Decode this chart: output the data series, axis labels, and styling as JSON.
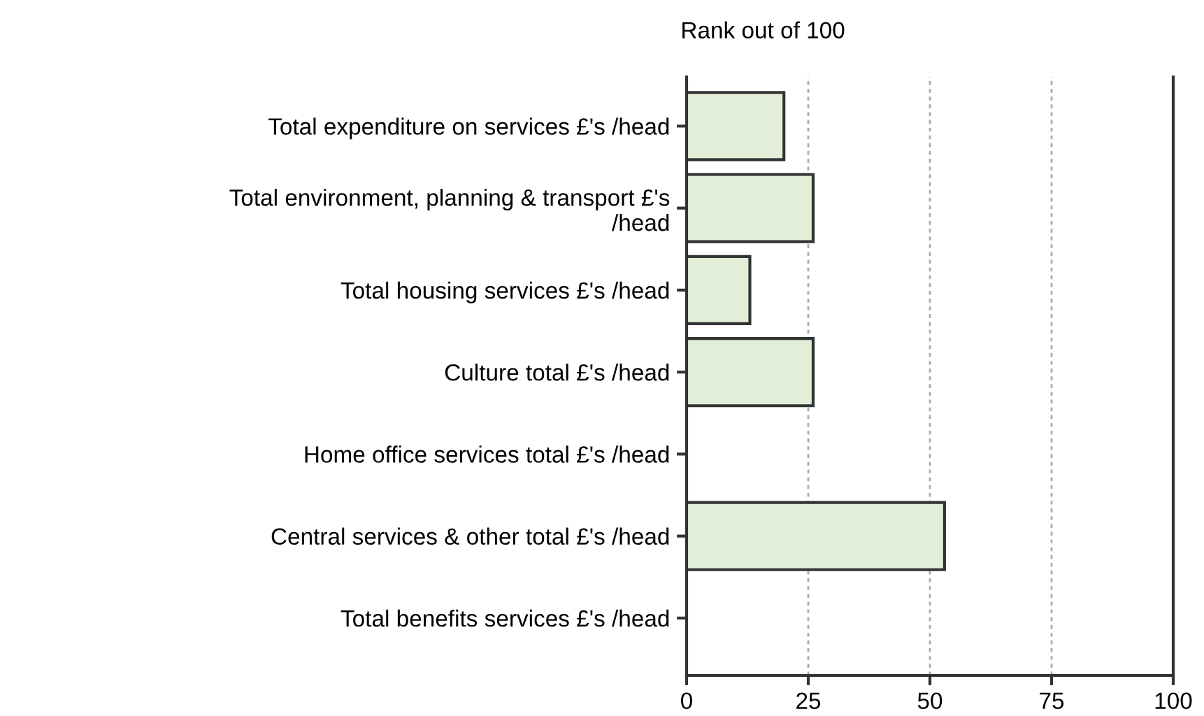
{
  "chart_data": {
    "type": "bar",
    "orientation": "horizontal",
    "title": "Rank out of 100",
    "categories": [
      "Total expenditure on services £'s /head",
      "Total environment, planning & transport £'s\n/head",
      "Total housing services £'s /head",
      "Culture total £'s /head",
      "Home office services total £'s /head",
      "Central services & other total £'s /head",
      "Total benefits services £'s /head"
    ],
    "values": [
      20,
      26,
      13,
      26,
      null,
      53,
      null
    ],
    "color": "#e2eed8",
    "xlim": [
      0,
      100
    ],
    "xticks": [
      0,
      25,
      50,
      75,
      100
    ],
    "grid": "x",
    "legend": false
  }
}
